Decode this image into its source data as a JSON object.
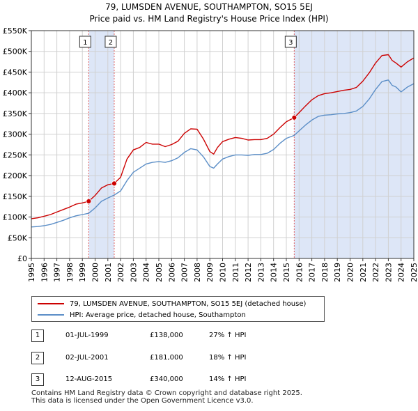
{
  "title_line1": "79, LUMSDEN AVENUE, SOUTHAMPTON, SO15 5EJ",
  "title_line2": "Price paid vs. HM Land Registry's House Price Index (HPI)",
  "colors": {
    "red": "#cc0000",
    "blue": "#5b8ec7",
    "shade": "#dde6f7",
    "grid": "#d0d0d0",
    "vline": "#e06060"
  },
  "chart_data": {
    "type": "line",
    "ylim": [
      0,
      550000
    ],
    "xlim": [
      1995,
      2025
    ],
    "y_ticks": [
      0,
      50000,
      100000,
      150000,
      200000,
      250000,
      300000,
      350000,
      400000,
      450000,
      500000,
      550000
    ],
    "y_tick_labels": [
      "£0",
      "£50K",
      "£100K",
      "£150K",
      "£200K",
      "£250K",
      "£300K",
      "£350K",
      "£400K",
      "£450K",
      "£500K",
      "£550K"
    ],
    "x_ticks": [
      1995,
      1996,
      1997,
      1998,
      1999,
      2000,
      2001,
      2002,
      2003,
      2004,
      2005,
      2006,
      2007,
      2008,
      2009,
      2010,
      2011,
      2012,
      2013,
      2014,
      2015,
      2016,
      2017,
      2018,
      2019,
      2020,
      2021,
      2022,
      2023,
      2024,
      2025
    ],
    "x_tick_labels": [
      "1995",
      "1996",
      "1997",
      "1998",
      "1999",
      "2000",
      "2001",
      "2002",
      "2003",
      "2004",
      "2005",
      "2006",
      "2007",
      "2008",
      "2009",
      "2010",
      "2011",
      "2012",
      "2013",
      "2014",
      "2015",
      "2016",
      "2017",
      "2018",
      "2019",
      "2020",
      "2021",
      "2022",
      "2023",
      "2024",
      "2025"
    ],
    "shaded_ranges": [
      [
        1999.5,
        2001.5
      ],
      [
        2015.62,
        2025
      ]
    ],
    "grid": true,
    "series": [
      {
        "name": "79, LUMSDEN AVENUE, SOUTHAMPTON, SO15 5EJ (detached house)",
        "color": "#cc0000",
        "x": [
          1995,
          1995.5,
          1996,
          1996.5,
          1997,
          1997.5,
          1998,
          1998.5,
          1999,
          1999.5,
          2000,
          2000.5,
          2001,
          2001.5,
          2002,
          2002.5,
          2003,
          2003.5,
          2004,
          2004.5,
          2005,
          2005.5,
          2006,
          2006.5,
          2007,
          2007.5,
          2008,
          2008.5,
          2009,
          2009.3,
          2009.6,
          2010,
          2010.5,
          2011,
          2011.5,
          2012,
          2012.5,
          2013,
          2013.5,
          2014,
          2014.5,
          2015,
          2015.62,
          2016,
          2016.5,
          2017,
          2017.5,
          2018,
          2018.5,
          2019,
          2019.5,
          2020,
          2020.5,
          2021,
          2021.5,
          2022,
          2022.5,
          2023,
          2023.3,
          2023.6,
          2024,
          2024.5,
          2025
        ],
        "values": [
          96000,
          98000,
          102000,
          106000,
          112000,
          118000,
          124000,
          131000,
          134000,
          138000,
          152000,
          170000,
          178000,
          181000,
          196000,
          240000,
          262000,
          268000,
          280000,
          276000,
          276000,
          270000,
          275000,
          283000,
          302000,
          313000,
          312000,
          288000,
          258000,
          252000,
          268000,
          282000,
          288000,
          292000,
          290000,
          286000,
          287000,
          287000,
          290000,
          300000,
          316000,
          330000,
          340000,
          352000,
          368000,
          383000,
          393000,
          398000,
          400000,
          403000,
          406000,
          408000,
          413000,
          428000,
          448000,
          472000,
          490000,
          492000,
          478000,
          472000,
          462000,
          475000,
          484000
        ]
      },
      {
        "name": "HPI: Average price, detached house, Southampton",
        "color": "#5b8ec7",
        "x": [
          1995,
          1995.5,
          1996,
          1996.5,
          1997,
          1997.5,
          1998,
          1998.5,
          1999,
          1999.5,
          2000,
          2000.5,
          2001,
          2001.5,
          2002,
          2002.5,
          2003,
          2003.5,
          2004,
          2004.5,
          2005,
          2005.5,
          2006,
          2006.5,
          2007,
          2007.5,
          2008,
          2008.5,
          2009,
          2009.3,
          2009.6,
          2010,
          2010.5,
          2011,
          2011.5,
          2012,
          2012.5,
          2013,
          2013.5,
          2014,
          2014.5,
          2015,
          2015.62,
          2016,
          2016.5,
          2017,
          2017.5,
          2018,
          2018.5,
          2019,
          2019.5,
          2020,
          2020.5,
          2021,
          2021.5,
          2022,
          2022.5,
          2023,
          2023.3,
          2023.6,
          2024,
          2024.5,
          2025
        ],
        "values": [
          76000,
          77000,
          79000,
          82000,
          87000,
          92000,
          98000,
          103000,
          106000,
          109000,
          122000,
          138000,
          146000,
          153000,
          163000,
          188000,
          208000,
          218000,
          228000,
          232000,
          234000,
          232000,
          236000,
          243000,
          256000,
          265000,
          262000,
          245000,
          222000,
          218000,
          228000,
          240000,
          246000,
          250000,
          250000,
          249000,
          251000,
          251000,
          254000,
          263000,
          278000,
          290000,
          297000,
          308000,
          322000,
          334000,
          343000,
          346000,
          347000,
          349000,
          350000,
          352000,
          356000,
          367000,
          385000,
          408000,
          427000,
          431000,
          418000,
          414000,
          402000,
          414000,
          422000
        ]
      }
    ],
    "transactions": [
      {
        "label": "1",
        "x": 1999.5,
        "value": 138000
      },
      {
        "label": "2",
        "x": 2001.5,
        "value": 181000
      },
      {
        "label": "3",
        "x": 2015.62,
        "value": 340000
      }
    ]
  },
  "legend": {
    "items": [
      {
        "label": "79, LUMSDEN AVENUE, SOUTHAMPTON, SO15 5EJ (detached house)",
        "color": "#cc0000"
      },
      {
        "label": "HPI: Average price, detached house, Southampton",
        "color": "#5b8ec7"
      }
    ]
  },
  "table": {
    "rows": [
      {
        "num": "1",
        "date": "01-JUL-1999",
        "price": "£138,000",
        "hpi": "27% ↑ HPI"
      },
      {
        "num": "2",
        "date": "02-JUL-2001",
        "price": "£181,000",
        "hpi": "18% ↑ HPI"
      },
      {
        "num": "3",
        "date": "12-AUG-2015",
        "price": "£340,000",
        "hpi": "14% ↑ HPI"
      }
    ]
  },
  "footer": {
    "line1": "Contains HM Land Registry data © Crown copyright and database right 2025.",
    "line2": "This data is licensed under the Open Government Licence v3.0."
  }
}
